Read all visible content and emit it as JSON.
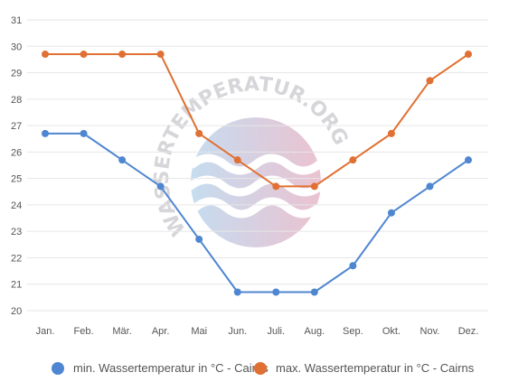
{
  "chart_data": {
    "type": "line",
    "categories": [
      "Jan.",
      "Feb.",
      "Mär.",
      "Apr.",
      "Mai",
      "Jun.",
      "Juli.",
      "Aug.",
      "Sep.",
      "Okt.",
      "Nov.",
      "Dez."
    ],
    "ylim": [
      20,
      31
    ],
    "yticks": [
      20,
      21,
      22,
      23,
      24,
      25,
      26,
      27,
      28,
      29,
      30,
      31
    ],
    "grid": true,
    "legend": "bottom",
    "series": [
      {
        "name": "min. Wassertemperatur in °C - Cairns",
        "color": "#4f86d1",
        "values": [
          26.7,
          26.7,
          25.7,
          24.7,
          22.7,
          20.7,
          20.7,
          20.7,
          21.7,
          23.7,
          24.7,
          25.7
        ]
      },
      {
        "name": "max. Wassertemperatur in °C - Cairns",
        "color": "#e07033",
        "values": [
          29.7,
          29.7,
          29.7,
          29.7,
          26.7,
          25.7,
          24.7,
          24.7,
          25.7,
          26.7,
          28.7,
          29.7
        ]
      }
    ]
  },
  "watermark": {
    "text": "WASSERTEMPERATUR.ORG"
  }
}
